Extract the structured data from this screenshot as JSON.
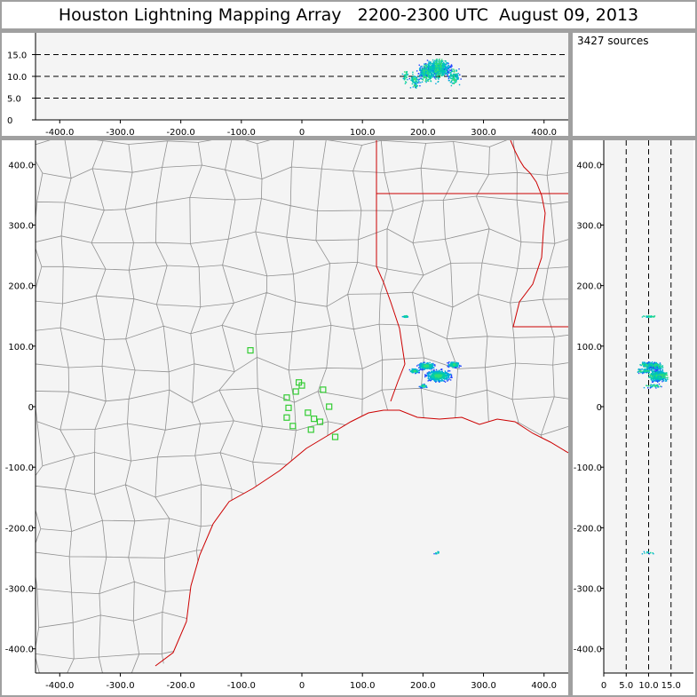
{
  "title": "Houston Lightning Mapping Array   2200-2300 UTC  August 09, 2013",
  "sources_label": "3427 sources",
  "x_ticks": [
    "-400.0",
    "-300.0",
    "-200.0",
    "-100.0",
    "0",
    "100.0",
    "200.0",
    "300.0",
    "400.0"
  ],
  "y_ticks": [
    "400.0",
    "300.0",
    "200.0",
    "100.0",
    "0",
    "-100.0",
    "-200.0",
    "-300.0",
    "-400.0"
  ],
  "alt_ticks": [
    "15.0",
    "10.0",
    "5.0",
    "0"
  ],
  "alt_ticks_x": [
    "0",
    "5.0",
    "10.0",
    "15.0"
  ],
  "colors": {
    "frame": "#a0a0a0",
    "panel_bg": "#f4f4f4",
    "county_line": "#909090",
    "state_line": "#cc0000",
    "station": "#33cc33",
    "density_scale": [
      "#4400aa",
      "#2244ff",
      "#00aadd",
      "#00ccaa",
      "#33dd77"
    ]
  },
  "chart_data": {
    "type": "scatter",
    "units": "km",
    "plan_xlim": [
      -440,
      440
    ],
    "plan_ylim": [
      -440,
      440
    ],
    "alt_range": [
      0,
      20
    ],
    "source_count": 3427,
    "stations": [
      [
        -85,
        93
      ],
      [
        -25,
        15
      ],
      [
        -22,
        -2
      ],
      [
        -25,
        -18
      ],
      [
        -10,
        25
      ],
      [
        -5,
        40
      ],
      [
        0,
        35
      ],
      [
        10,
        -10
      ],
      [
        20,
        -20
      ],
      [
        30,
        -25
      ],
      [
        35,
        28
      ],
      [
        45,
        0
      ],
      [
        55,
        -50
      ],
      [
        -15,
        -32
      ],
      [
        15,
        -38
      ]
    ],
    "clusters": [
      {
        "x": 225,
        "y": 52,
        "alt": 12,
        "spread": 12,
        "count": 600
      },
      {
        "x": 205,
        "y": 68,
        "alt": 11,
        "spread": 8,
        "count": 250
      },
      {
        "x": 250,
        "y": 70,
        "alt": 10,
        "spread": 6,
        "count": 120
      },
      {
        "x": 185,
        "y": 60,
        "alt": 9,
        "spread": 5,
        "count": 80
      },
      {
        "x": 170,
        "y": 150,
        "alt": 10,
        "spread": 3,
        "count": 30
      },
      {
        "x": 200,
        "y": 35,
        "alt": 11,
        "spread": 4,
        "count": 40
      },
      {
        "x": 222,
        "y": -240,
        "alt": 10,
        "spread": 3,
        "count": 12
      }
    ]
  }
}
